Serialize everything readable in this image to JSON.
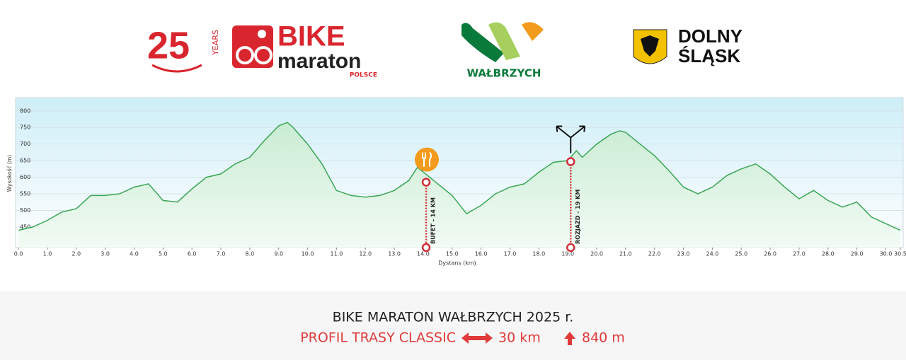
{
  "header": {
    "logo1": {
      "years_number": "25",
      "years_word": "YEARS",
      "brand_top": "BIKE",
      "brand_mid": "maraton",
      "brand_bottom": "POLSCE"
    },
    "logo2": {
      "city": "WAŁBRZYCH"
    },
    "logo3": {
      "line1": "DOLNY",
      "line2": "ŚLĄSK"
    }
  },
  "chart_data": {
    "type": "line",
    "y_label": "Wysokość (m)",
    "x_label": "Dystans (km)",
    "color": "#3aa655",
    "grid": true,
    "xlim": [
      -0.1,
      30.6
    ],
    "ylim": [
      388,
      840
    ],
    "yticks": [
      450,
      500,
      550,
      600,
      650,
      700,
      750,
      800
    ],
    "xticks": [
      {
        "value": 0,
        "label": "0.0"
      },
      {
        "value": 1,
        "label": "1.0"
      },
      {
        "value": 2,
        "label": "2.0"
      },
      {
        "value": 3,
        "label": "3.0"
      },
      {
        "value": 4,
        "label": "4.0"
      },
      {
        "value": 5,
        "label": "5.0"
      },
      {
        "value": 6,
        "label": "6.0"
      },
      {
        "value": 7,
        "label": "7.0"
      },
      {
        "value": 8,
        "label": "8.0"
      },
      {
        "value": 9,
        "label": "9.0"
      },
      {
        "value": 10,
        "label": "10.0"
      },
      {
        "value": 11,
        "label": "11.0"
      },
      {
        "value": 12,
        "label": "12.0"
      },
      {
        "value": 13,
        "label": "13.0"
      },
      {
        "value": 14,
        "label": "14.0"
      },
      {
        "value": 15,
        "label": "15.0"
      },
      {
        "value": 16,
        "label": "16.0"
      },
      {
        "value": 17,
        "label": "17.0"
      },
      {
        "value": 18,
        "label": "18.0"
      },
      {
        "value": 19,
        "label": "19.0"
      },
      {
        "value": 20,
        "label": "20.0"
      },
      {
        "value": 21,
        "label": "21.0"
      },
      {
        "value": 22,
        "label": "22.0"
      },
      {
        "value": 23,
        "label": "23.0"
      },
      {
        "value": 24,
        "label": "24.0"
      },
      {
        "value": 25,
        "label": "25.0"
      },
      {
        "value": 26,
        "label": "26.0"
      },
      {
        "value": 27,
        "label": "27.0"
      },
      {
        "value": 28,
        "label": "28.0"
      },
      {
        "value": 29,
        "label": "29.0"
      },
      {
        "value": 30,
        "label": "30.0"
      },
      30.5
    ],
    "x": [
      0,
      0.5,
      1,
      1.5,
      2,
      2.5,
      3,
      3.5,
      4,
      4.5,
      5,
      5.5,
      6,
      6.5,
      7,
      7.5,
      8,
      8.5,
      9,
      9.3,
      9.5,
      10,
      10.5,
      11,
      11.5,
      12,
      12.5,
      13,
      13.5,
      13.8,
      14.5,
      15,
      15.5,
      16,
      16.5,
      17,
      17.5,
      18,
      18.5,
      19,
      19.3,
      19.5,
      20,
      20.5,
      20.8,
      21,
      21.5,
      22,
      22.5,
      23,
      23.5,
      24,
      24.5,
      25,
      25.5,
      26,
      26.5,
      27,
      27.5,
      28,
      28.5,
      29,
      29.5,
      30,
      30.5
    ],
    "values": [
      440,
      450,
      470,
      495,
      505,
      545,
      545,
      550,
      570,
      580,
      530,
      525,
      565,
      600,
      610,
      640,
      660,
      710,
      755,
      765,
      750,
      700,
      640,
      560,
      545,
      540,
      545,
      560,
      590,
      630,
      580,
      545,
      490,
      515,
      550,
      570,
      580,
      615,
      645,
      650,
      680,
      660,
      700,
      730,
      740,
      735,
      700,
      665,
      620,
      570,
      550,
      570,
      605,
      625,
      640,
      610,
      570,
      535,
      560,
      530,
      510,
      525,
      480,
      460,
      440
    ],
    "annotations": [
      {
        "text": "BUFET - 14 KM",
        "x": 14.1,
        "y": 585
      },
      {
        "text": "ROZJAZD - 19 KM",
        "x": 19.1,
        "y": 647
      }
    ]
  },
  "footer": {
    "title": "BIKE MARATON WAŁBRZYCH 2025 r.",
    "profile": "PROFIL TRASY CLASSIC",
    "distance": "30 km",
    "ascent": "840 m"
  }
}
